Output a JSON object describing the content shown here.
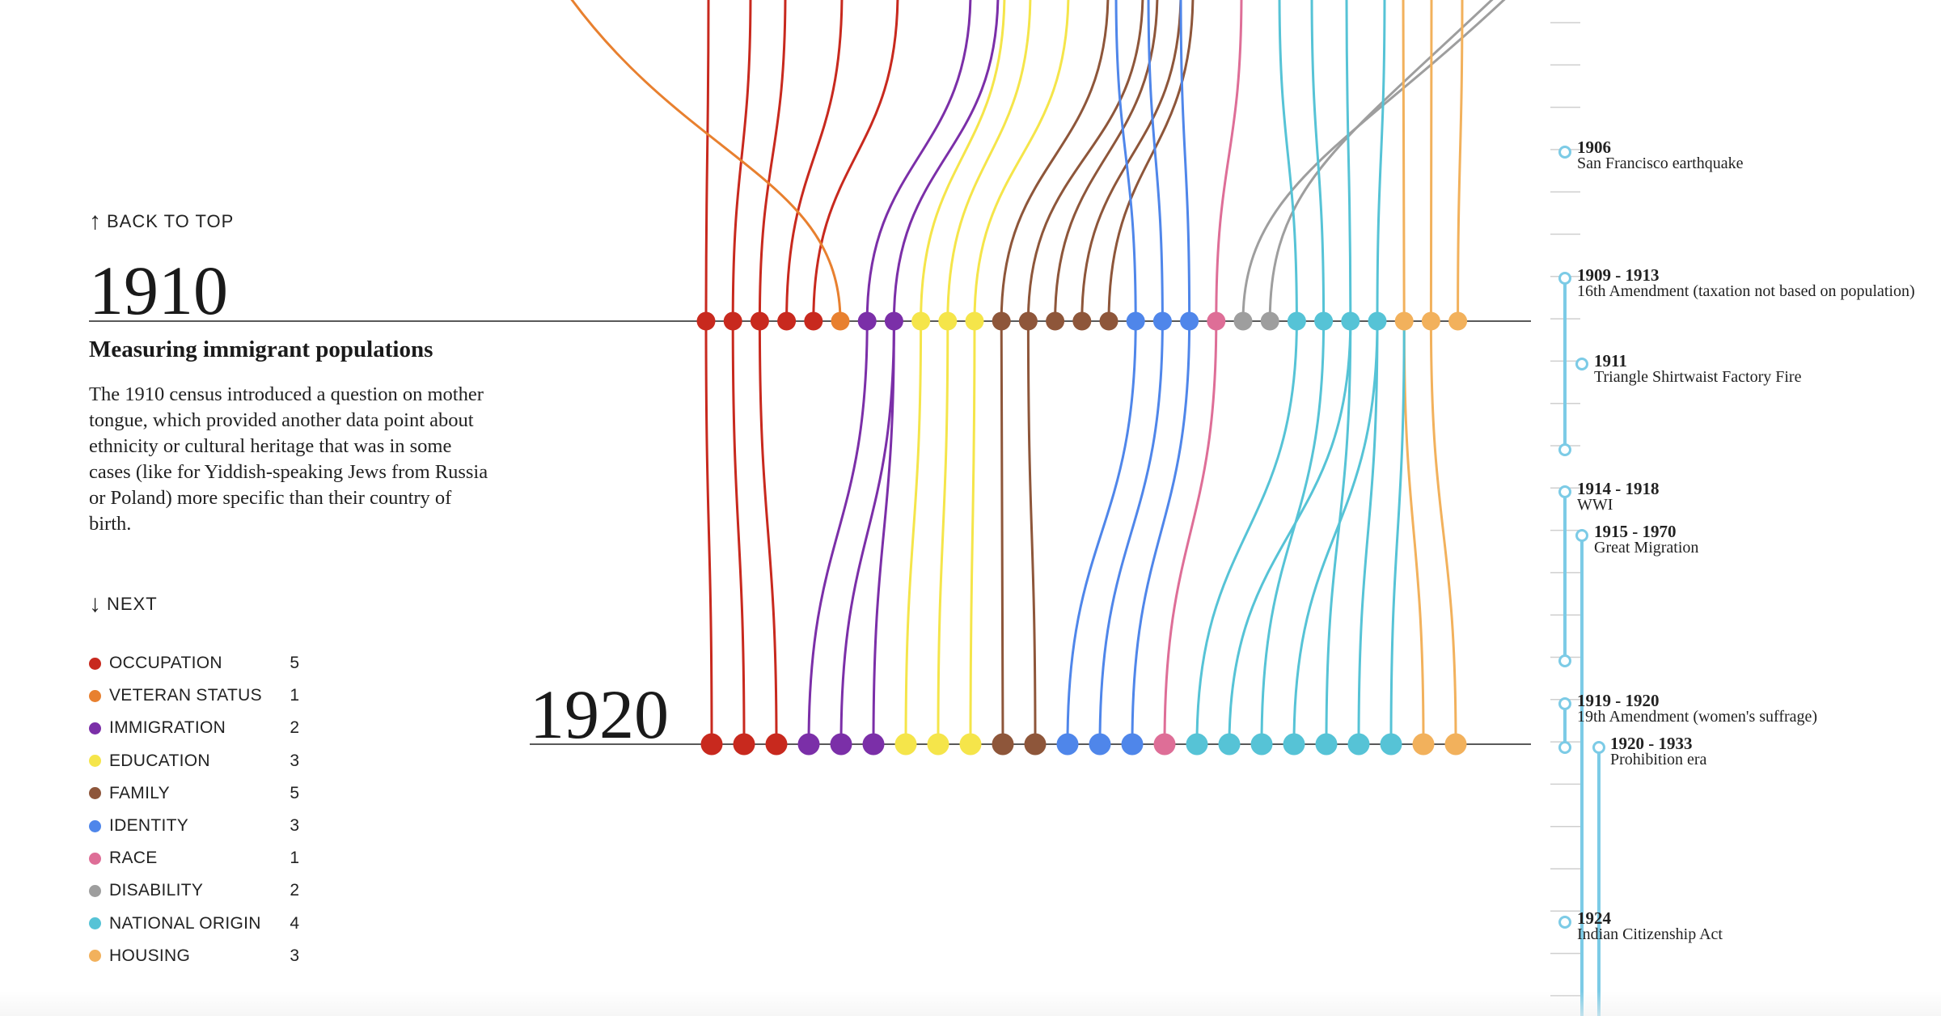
{
  "nav": {
    "back_to_top": "BACK TO TOP",
    "next": "NEXT"
  },
  "section": {
    "year": "1910",
    "next_year": "1920",
    "title": "Measuring immigrant populations",
    "body": "The 1910 census introduced a question on mother tongue, which provided another data point about ethnicity or cultural heritage that was in some cases (like for Yiddish-speaking Jews from Russia or Poland) more specific than their country of birth."
  },
  "legend": [
    {
      "label": "OCCUPATION",
      "count": "5",
      "color": "#c8291e"
    },
    {
      "label": "VETERAN STATUS",
      "count": "1",
      "color": "#e8802f"
    },
    {
      "label": "IMMIGRATION",
      "count": "2",
      "color": "#7b2fa8"
    },
    {
      "label": "EDUCATION",
      "count": "3",
      "color": "#f5e54a"
    },
    {
      "label": "FAMILY",
      "count": "5",
      "color": "#8e563a"
    },
    {
      "label": "IDENTITY",
      "count": "3",
      "color": "#4f86ea"
    },
    {
      "label": "RACE",
      "count": "1",
      "color": "#de6e97"
    },
    {
      "label": "DISABILITY",
      "count": "2",
      "color": "#9e9e9e"
    },
    {
      "label": "NATIONAL ORIGIN",
      "count": "4",
      "color": "#56c3d6"
    },
    {
      "label": "HOUSING",
      "count": "3",
      "color": "#f2b15c"
    }
  ],
  "chart_data": {
    "type": "flow",
    "rows": [
      "1910",
      "1920"
    ],
    "row_1910": [
      "OCCUPATION",
      "OCCUPATION",
      "OCCUPATION",
      "OCCUPATION",
      "OCCUPATION",
      "VETERAN STATUS",
      "IMMIGRATION",
      "IMMIGRATION",
      "EDUCATION",
      "EDUCATION",
      "EDUCATION",
      "FAMILY",
      "FAMILY",
      "FAMILY",
      "FAMILY",
      "FAMILY",
      "IDENTITY",
      "IDENTITY",
      "IDENTITY",
      "RACE",
      "DISABILITY",
      "DISABILITY",
      "NATIONAL ORIGIN",
      "NATIONAL ORIGIN",
      "NATIONAL ORIGIN",
      "NATIONAL ORIGIN",
      "HOUSING",
      "HOUSING",
      "HOUSING"
    ],
    "row_1920": [
      "OCCUPATION",
      "OCCUPATION",
      "OCCUPATION",
      "IMMIGRATION",
      "IMMIGRATION",
      "IMMIGRATION",
      "EDUCATION",
      "EDUCATION",
      "EDUCATION",
      "FAMILY",
      "FAMILY",
      "IDENTITY",
      "IDENTITY",
      "IDENTITY",
      "RACE",
      "NATIONAL ORIGIN",
      "NATIONAL ORIGIN",
      "NATIONAL ORIGIN",
      "NATIONAL ORIGIN",
      "NATIONAL ORIGIN",
      "NATIONAL ORIGIN",
      "NATIONAL ORIGIN",
      "HOUSING",
      "HOUSING"
    ]
  },
  "timeline": {
    "color": "#7ccbe6",
    "events": [
      {
        "year": "1906",
        "name": "San Francisco earthquake"
      },
      {
        "year": "1909 - 1913",
        "name": "16th Amendment (taxation not based on population)"
      },
      {
        "year": "1911",
        "name": "Triangle Shirtwaist Factory Fire"
      },
      {
        "year": "1914 - 1918",
        "name": "WWI"
      },
      {
        "year": "1915 - 1970",
        "name": "Great Migration"
      },
      {
        "year": "1919 - 1920",
        "name": "19th Amendment (women's suffrage)"
      },
      {
        "year": "1920 - 1933",
        "name": "Prohibition era"
      },
      {
        "year": "1924",
        "name": "Indian Citizenship Act"
      }
    ]
  }
}
